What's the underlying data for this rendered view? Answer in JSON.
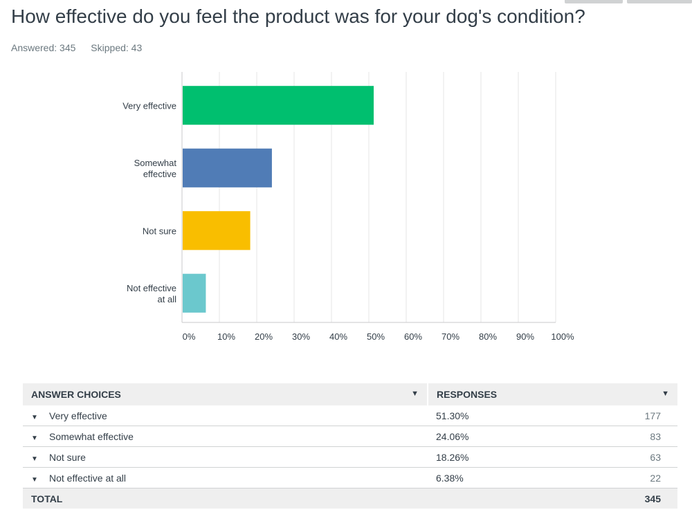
{
  "question": {
    "title": "How effective do you feel the product was for your dog's condition?",
    "answered_label": "Answered: 345",
    "skipped_label": "Skipped: 43"
  },
  "chart_data": {
    "type": "bar",
    "orientation": "horizontal",
    "categories": [
      [
        "Very effective"
      ],
      [
        "Somewhat",
        "effective"
      ],
      [
        "Not sure"
      ],
      [
        "Not effective",
        "at all"
      ]
    ],
    "values": [
      51.3,
      24.06,
      18.26,
      6.38
    ],
    "colors": [
      "#00bf6f",
      "#507cb6",
      "#f9be00",
      "#6bc8cd"
    ],
    "xticks": [
      "0%",
      "10%",
      "20%",
      "30%",
      "40%",
      "50%",
      "60%",
      "70%",
      "80%",
      "90%",
      "100%"
    ],
    "xlim": [
      0,
      100
    ],
    "grid": true
  },
  "table": {
    "headers": {
      "choice": "ANSWER CHOICES",
      "responses": "RESPONSES"
    },
    "rows": [
      {
        "choice": "Very effective",
        "pct": "51.30%",
        "count": "177"
      },
      {
        "choice": "Somewhat effective",
        "pct": "24.06%",
        "count": "83"
      },
      {
        "choice": "Not sure",
        "pct": "18.26%",
        "count": "63"
      },
      {
        "choice": "Not effective at all",
        "pct": "6.38%",
        "count": "22"
      }
    ],
    "total": {
      "label": "TOTAL",
      "count": "345"
    }
  },
  "icons": {
    "sort": "sort-caret-icon",
    "row_toggle": "caret-down-icon"
  }
}
